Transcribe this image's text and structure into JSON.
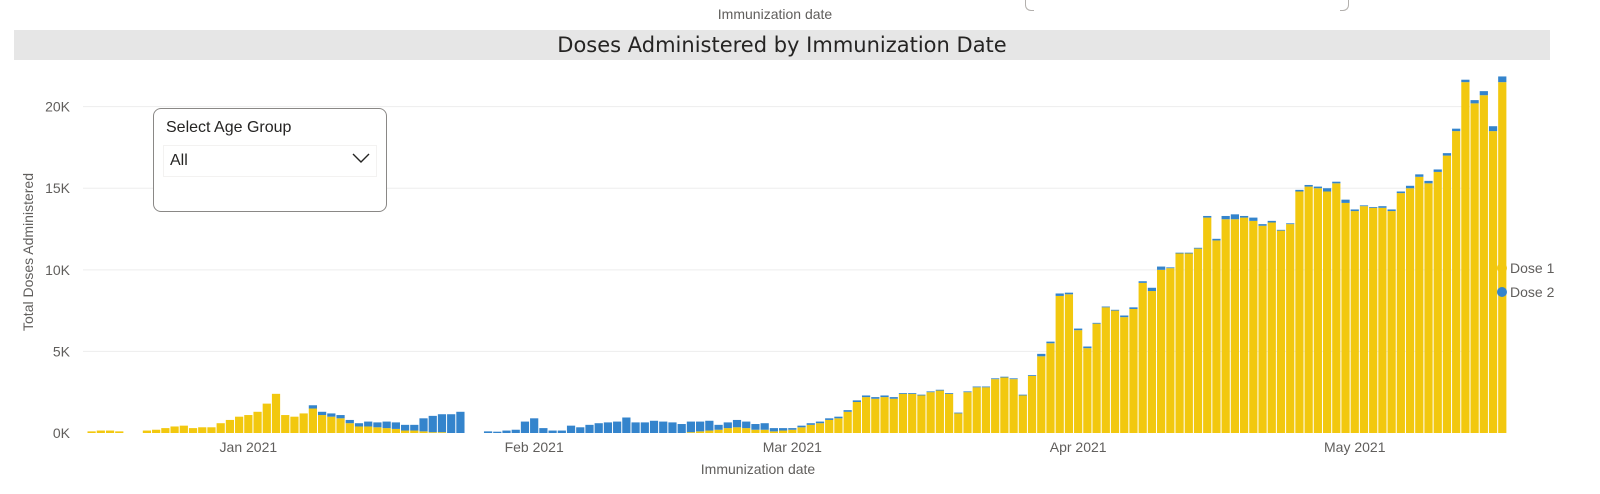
{
  "header": {
    "top_axis_label": "Immunization date"
  },
  "visual": {
    "title": "Doses Administered by Immunization Date"
  },
  "slicer": {
    "label": "Select Age Group",
    "selected": "All"
  },
  "colors": {
    "dose1": "#F2C80F",
    "dose2": "#3484CC",
    "grid": "#ededed",
    "axis_text": "#605e5c"
  },
  "chart_data": {
    "type": "bar",
    "stacked": true,
    "title": "Doses Administered by Immunization Date",
    "xlabel": "Immunization date",
    "ylabel": "Total Doses Administered",
    "ylim": [
      0,
      22000
    ],
    "yticks": [
      0,
      5000,
      10000,
      15000,
      20000
    ],
    "ytick_labels": [
      "0K",
      "5K",
      "10K",
      "15K",
      "20K"
    ],
    "xlim": [
      "2020-12-15",
      "2021-05-13"
    ],
    "xticks": [
      "2021-01-01",
      "2021-02-01",
      "2021-03-01",
      "2021-04-01",
      "2021-05-01"
    ],
    "xtick_labels": [
      "Jan 2021",
      "Feb 2021",
      "Mar 2021",
      "Apr 2021",
      "May 2021"
    ],
    "legend": {
      "position": "right",
      "entries": [
        "Dose 1",
        "Dose 2"
      ]
    },
    "grid": true,
    "series": [
      {
        "name": "Dose 1",
        "start_date": "2020-12-15",
        "values": [
          100,
          150,
          150,
          100,
          0,
          0,
          150,
          200,
          300,
          400,
          450,
          300,
          350,
          350,
          600,
          800,
          1000,
          1100,
          1300,
          1800,
          2400,
          1100,
          1000,
          1200,
          1500,
          1100,
          1000,
          900,
          600,
          400,
          400,
          350,
          300,
          250,
          150,
          150,
          100,
          50,
          50,
          0,
          0,
          0,
          0,
          0,
          0,
          0,
          0,
          0,
          0,
          0,
          0,
          0,
          0,
          0,
          0,
          0,
          0,
          0,
          0,
          0,
          0,
          0,
          0,
          0,
          0,
          50,
          100,
          150,
          200,
          300,
          350,
          300,
          200,
          200,
          100,
          150,
          200,
          350,
          500,
          600,
          800,
          900,
          1300,
          1900,
          2200,
          2100,
          2200,
          2100,
          2400,
          2400,
          2300,
          2500,
          2600,
          2400,
          1200,
          2500,
          2800,
          2800,
          3300,
          3400,
          3300,
          2300,
          3500,
          4700,
          5500,
          8400,
          8500,
          6300,
          5200,
          6700,
          7700,
          7500,
          7100,
          7600,
          9200,
          8700,
          10000,
          10100,
          11000,
          11000,
          11300,
          13200,
          11800,
          13100,
          13100,
          13200,
          13000,
          12700,
          12900,
          12400,
          12800,
          14800,
          15100,
          15000,
          14800,
          15300,
          14100,
          13600,
          13900,
          13800,
          13800,
          13600,
          14700,
          15000,
          15700,
          15300,
          16000,
          17000,
          18500,
          21500,
          20200,
          20700,
          18500,
          21500
        ]
      },
      {
        "name": "Dose 2",
        "start_date": "2020-12-15",
        "values": [
          0,
          0,
          0,
          0,
          0,
          0,
          0,
          0,
          0,
          0,
          0,
          0,
          0,
          0,
          0,
          0,
          0,
          0,
          0,
          0,
          0,
          0,
          0,
          0,
          200,
          200,
          200,
          200,
          200,
          200,
          300,
          300,
          400,
          400,
          350,
          350,
          800,
          1000,
          1100,
          1150,
          1300,
          0,
          0,
          100,
          80,
          150,
          200,
          700,
          900,
          300,
          150,
          150,
          450,
          350,
          500,
          600,
          650,
          700,
          950,
          650,
          650,
          750,
          700,
          650,
          550,
          650,
          600,
          600,
          300,
          350,
          450,
          400,
          350,
          400,
          200,
          150,
          100,
          100,
          100,
          100,
          100,
          100,
          100,
          100,
          100,
          100,
          100,
          100,
          50,
          50,
          50,
          50,
          50,
          50,
          50,
          50,
          50,
          50,
          50,
          50,
          50,
          50,
          50,
          150,
          100,
          150,
          100,
          100,
          100,
          50,
          50,
          50,
          100,
          100,
          100,
          200,
          200,
          50,
          50,
          50,
          50,
          100,
          100,
          200,
          300,
          100,
          200,
          100,
          100,
          50,
          50,
          100,
          100,
          100,
          200,
          100,
          200,
          100,
          50,
          50,
          100,
          100,
          100,
          150,
          150,
          150,
          150,
          150,
          150,
          150,
          200,
          250,
          300,
          350
        ]
      }
    ]
  }
}
